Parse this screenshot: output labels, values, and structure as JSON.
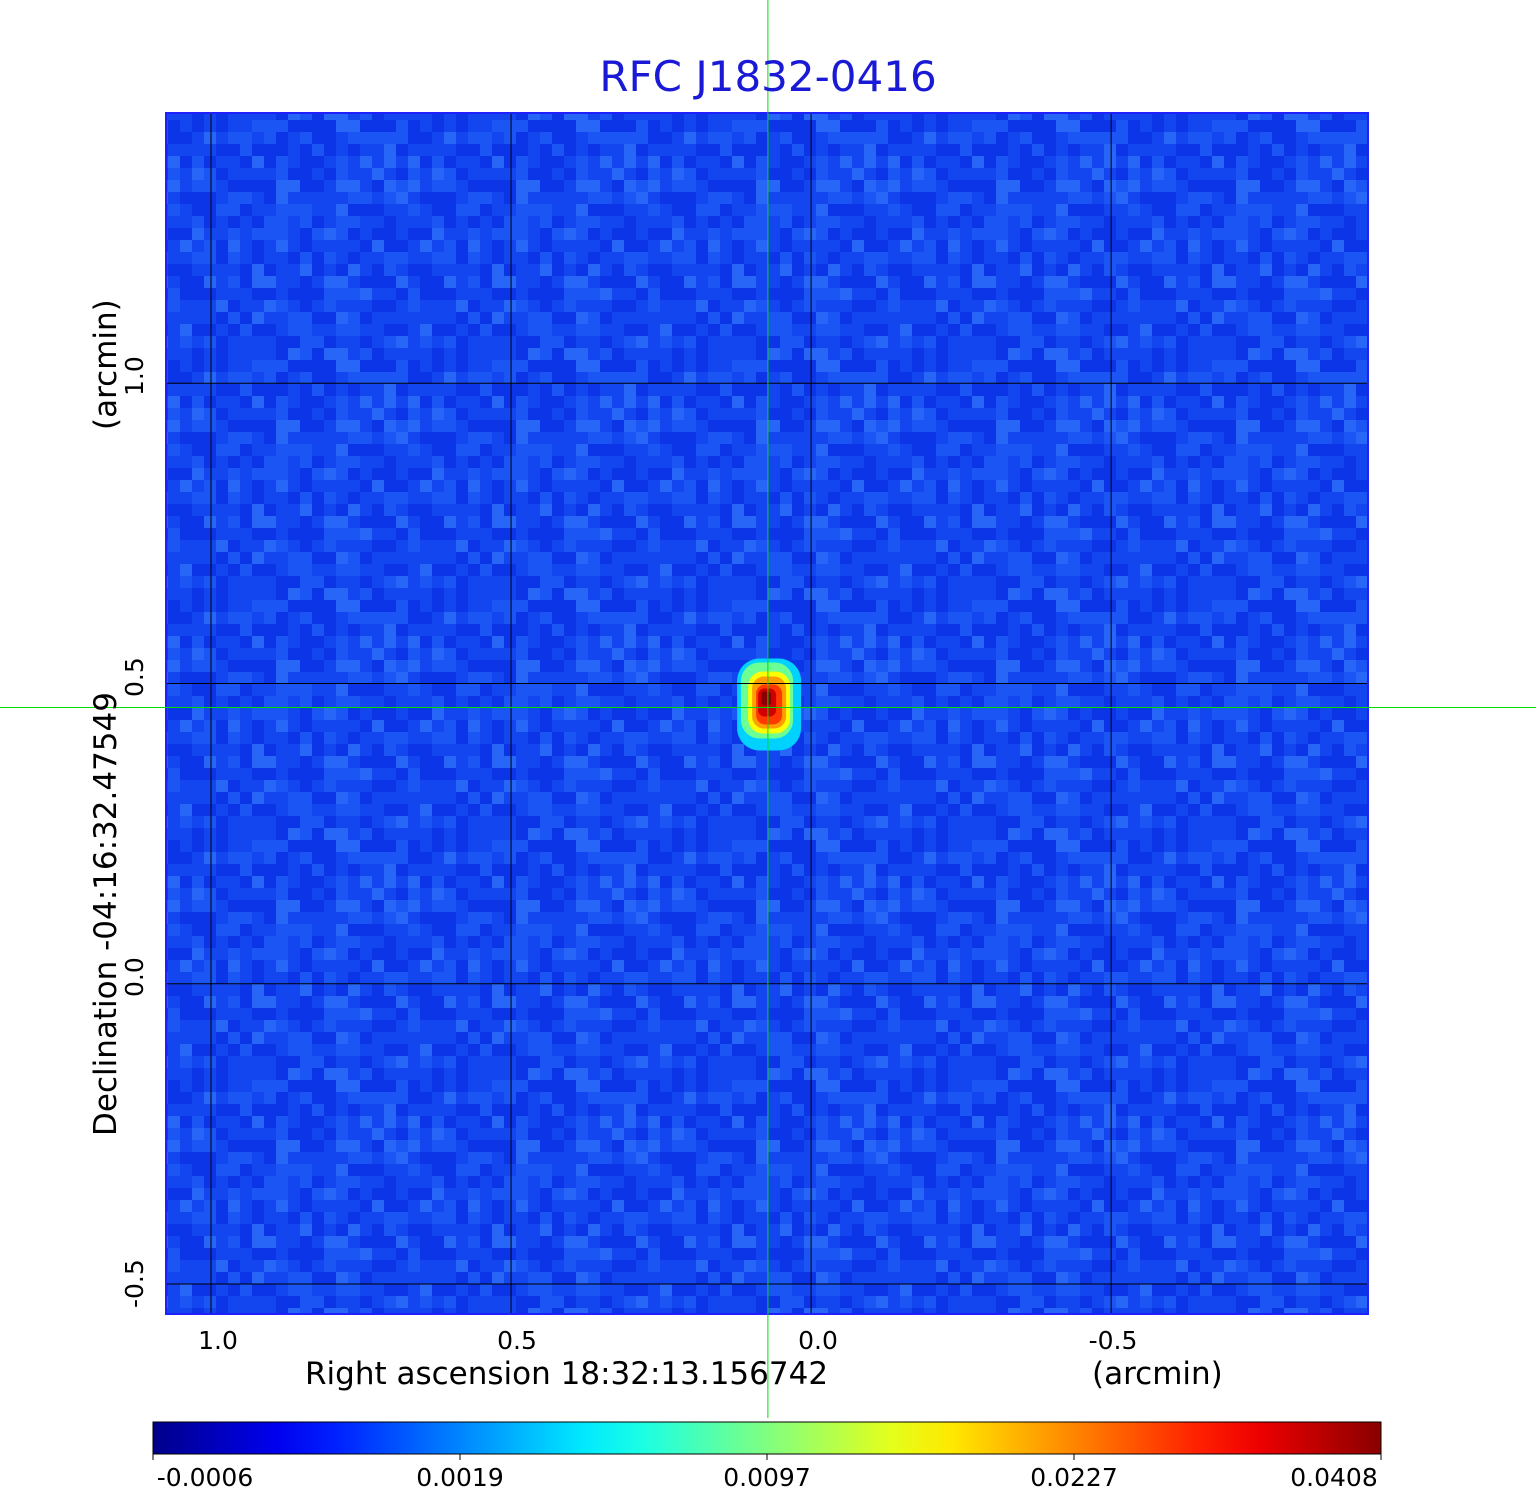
{
  "title": "RFC J1832-0416",
  "x_axis": {
    "label": "Right ascension  18:32:13.156742",
    "unit": "(arcmin)",
    "ticks": [
      "1.0",
      "0.5",
      "0.0",
      "-0.5"
    ],
    "tick_values": [
      1.0,
      0.5,
      0.0,
      -0.5
    ],
    "range": [
      1.075,
      -0.928
    ]
  },
  "y_axis": {
    "label": "Declination  -04:16:32.47549",
    "unit": "(arcmin)",
    "ticks": [
      "-0.5",
      "0.0",
      "0.5",
      "1.0"
    ],
    "tick_values": [
      -0.5,
      0.0,
      0.5,
      1.0
    ],
    "range": [
      -0.55,
      1.45
    ]
  },
  "colorbar": {
    "colormap": "jet",
    "ticks": [
      "-0.0006",
      "0.0019",
      "0.0097",
      "0.0227",
      "0.0408"
    ]
  },
  "chart_data": {
    "type": "heatmap",
    "title": "RFC J1832-0416",
    "xlabel": "Right ascension  18:32:13.156742 (arcmin)",
    "ylabel": "Declination  -04:16:32.47549 (arcmin)",
    "xlim": [
      1.075,
      -0.928
    ],
    "ylim": [
      -0.55,
      1.45
    ],
    "grid": true,
    "crosshair": {
      "x": 0.072,
      "y": 0.46,
      "color": "#00dd00"
    },
    "peak": {
      "x": 0.07,
      "y": 0.465,
      "value": 0.0408
    },
    "color_range": [
      -0.0006,
      0.0408
    ],
    "colorbar_ticks": [
      -0.0006,
      0.0019,
      0.0097,
      0.0227,
      0.0408
    ],
    "colors": {
      "background": "#1446f0",
      "title": "#1a1ad6",
      "grid": "#000000",
      "crosshair": "#00dd00"
    }
  }
}
